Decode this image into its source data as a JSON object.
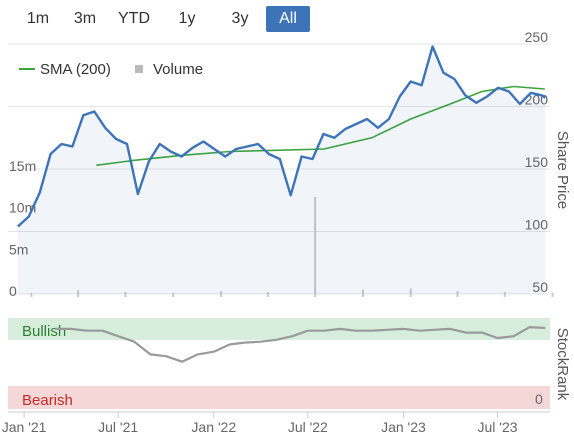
{
  "range_buttons": [
    {
      "label": "1m",
      "active": false
    },
    {
      "label": "3m",
      "active": false
    },
    {
      "label": "YTD",
      "active": false
    },
    {
      "label": "1y",
      "active": false
    },
    {
      "label": "3y",
      "active": false
    },
    {
      "label": "All",
      "active": true
    }
  ],
  "legend": {
    "sma_label": "SMA (200)",
    "volume_label": "Volume"
  },
  "axis_titles": {
    "price": "Share Price",
    "rank": "StockRank"
  },
  "rank_labels": {
    "bullish": "Bullish",
    "bearish": "Bearish",
    "zero": "0"
  },
  "colors": {
    "price": "#3d74b8",
    "sma": "#3aa53a",
    "volume": "#c8c8c8",
    "rank_line": "#9a9a9a",
    "rank_bull_line": "#2e8b2e",
    "bullish_band": "#d6eedb",
    "bearish_band": "#f6d7d8",
    "active_button": "#3d74b8"
  },
  "chart_data": [
    {
      "type": "line",
      "x_ticks": [
        "Jan '21",
        "Jul '21",
        "Jan '22",
        "Jul '22",
        "Jan '23",
        "Jul '23"
      ],
      "y_ticks": [
        50,
        100,
        150,
        200,
        250
      ],
      "ylim": [
        50,
        250
      ],
      "volume_ticks": [
        "0",
        "5m",
        "10m",
        "15m"
      ],
      "series": [
        {
          "name": "SMA (200)",
          "x": [
            "2021-05-20",
            "2021-08-01",
            "2021-11-01",
            "2022-02-01",
            "2022-05-01",
            "2022-08-01",
            "2022-11-01",
            "2023-01-15",
            "2023-04-01",
            "2023-06-01",
            "2023-08-01",
            "2023-09-30"
          ],
          "values": [
            153,
            157,
            161,
            164,
            165,
            166,
            175,
            190,
            202,
            212,
            216,
            214
          ]
        },
        {
          "name": "Share Price",
          "x": [
            "2020-12-20",
            "2021-01-10",
            "2021-01-31",
            "2021-02-21",
            "2021-03-14",
            "2021-04-04",
            "2021-04-25",
            "2021-05-16",
            "2021-06-06",
            "2021-06-27",
            "2021-07-18",
            "2021-08-08",
            "2021-08-29",
            "2021-09-19",
            "2021-10-10",
            "2021-10-31",
            "2021-11-21",
            "2021-12-12",
            "2022-01-02",
            "2022-01-23",
            "2022-02-13",
            "2022-03-06",
            "2022-03-27",
            "2022-04-17",
            "2022-05-08",
            "2022-05-29",
            "2022-06-19",
            "2022-07-10",
            "2022-07-31",
            "2022-08-21",
            "2022-09-11",
            "2022-10-02",
            "2022-10-23",
            "2022-11-13",
            "2022-12-04",
            "2022-12-25",
            "2023-01-15",
            "2023-02-05",
            "2023-02-26",
            "2023-03-19",
            "2023-04-09",
            "2023-04-30",
            "2023-05-21",
            "2023-06-11",
            "2023-07-02",
            "2023-07-23",
            "2023-08-13",
            "2023-09-03",
            "2023-09-24",
            "2023-10-01"
          ],
          "values": [
            104,
            112,
            131,
            162,
            170,
            168,
            193,
            196,
            183,
            174,
            170,
            130,
            156,
            170,
            164,
            160,
            167,
            172,
            166,
            160,
            166,
            168,
            170,
            162,
            158,
            129,
            160,
            158,
            178,
            175,
            182,
            186,
            190,
            183,
            190,
            208,
            220,
            217,
            248,
            227,
            222,
            209,
            203,
            208,
            215,
            212,
            202,
            211,
            209,
            207
          ]
        }
      ],
      "volume": {
        "x": [
          "2021-01",
          "2021-04",
          "2021-07",
          "2021-10",
          "2022-01",
          "2022-04",
          "2022-07",
          "2022-10",
          "2023-01",
          "2023-04",
          "2023-07",
          "2023-10"
        ],
        "values_m": [
          0.5,
          0.8,
          0.6,
          0.5,
          0.7,
          0.6,
          12.0,
          0.9,
          1.0,
          0.7,
          0.6,
          0.5
        ]
      }
    },
    {
      "type": "line",
      "name": "StockRank",
      "x_ticks": [
        "Jan '21",
        "Jul '21",
        "Jan '22",
        "Jul '22",
        "Jan '23",
        "Jul '23"
      ],
      "ylim": [
        0,
        100
      ],
      "series": [
        {
          "name": "StockRank",
          "x": [
            "2021-03-01",
            "2021-04-01",
            "2021-05-01",
            "2021-06-01",
            "2021-07-01",
            "2021-08-01",
            "2021-09-01",
            "2021-10-01",
            "2021-11-01",
            "2021-12-01",
            "2022-01-01",
            "2022-02-01",
            "2022-03-01",
            "2022-04-01",
            "2022-05-01",
            "2022-06-01",
            "2022-07-01",
            "2022-08-01",
            "2022-09-01",
            "2022-10-01",
            "2022-11-01",
            "2022-12-01",
            "2023-01-01",
            "2023-02-01",
            "2023-03-01",
            "2023-04-01",
            "2023-05-01",
            "2023-06-01",
            "2023-07-01",
            "2023-08-01",
            "2023-09-01",
            "2023-10-01"
          ],
          "values": [
            88,
            88,
            86,
            86,
            80,
            74,
            60,
            58,
            52,
            60,
            63,
            71,
            73,
            74,
            76,
            80,
            86,
            86,
            88,
            86,
            86,
            87,
            88,
            86,
            87,
            88,
            84,
            84,
            78,
            80,
            90,
            89
          ]
        }
      ]
    }
  ]
}
